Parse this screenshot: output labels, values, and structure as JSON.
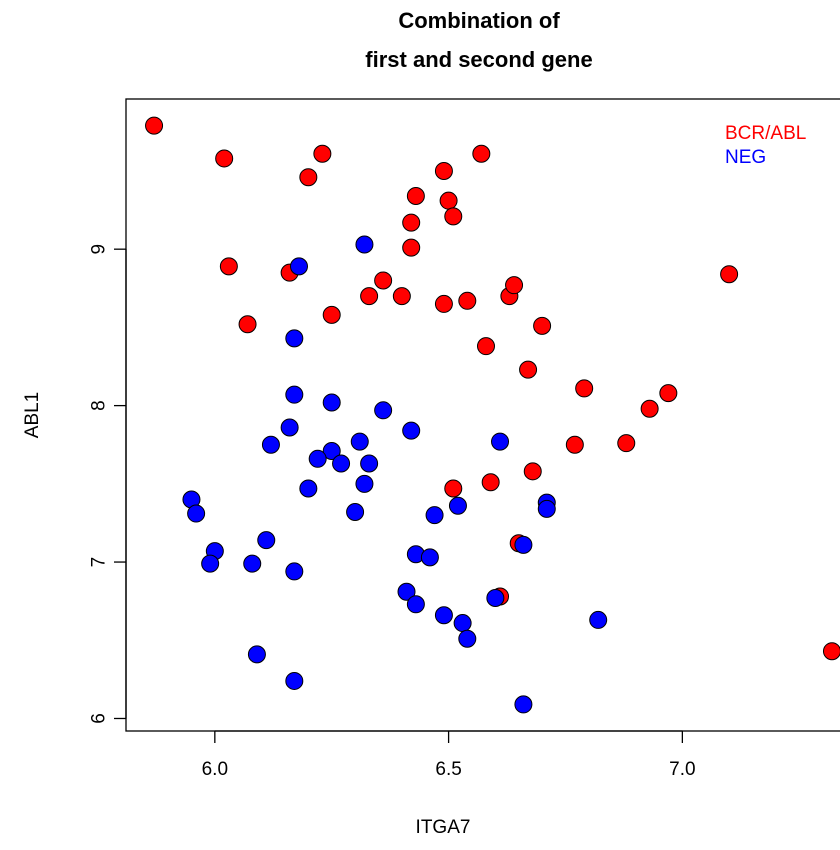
{
  "chart_data": {
    "type": "scatter",
    "title_line1": "Combination of",
    "title_line2": "first and second gene",
    "xlabel": "ITGA7",
    "ylabel": "ABL1",
    "xlim": [
      5.81,
      7.35
    ],
    "ylim": [
      5.92,
      9.96
    ],
    "xticks": [
      "6.0",
      "6.5",
      "7.0"
    ],
    "yticks": [
      "6",
      "7",
      "8",
      "9"
    ],
    "grid": false,
    "legend_position": "top-right",
    "colors": {
      "BCR/ABL": "#ff0000",
      "NEG": "#0000ff"
    },
    "series": [
      {
        "name": "BCR/ABL",
        "color": "#ff0000",
        "x": [
          5.87,
          6.02,
          6.23,
          6.2,
          6.57,
          6.49,
          6.5,
          6.51,
          6.43,
          6.42,
          6.42,
          6.03,
          6.16,
          6.36,
          6.33,
          6.4,
          6.49,
          6.54,
          6.63,
          6.64,
          6.25,
          6.07,
          6.7,
          6.58,
          7.1,
          6.67,
          6.79,
          6.97,
          6.93,
          6.77,
          6.88,
          6.68,
          6.59,
          6.51,
          6.65,
          6.61,
          7.32
        ],
        "y": [
          9.79,
          9.58,
          9.61,
          9.46,
          9.61,
          9.5,
          9.31,
          9.21,
          9.34,
          9.17,
          9.01,
          8.89,
          8.85,
          8.8,
          8.7,
          8.7,
          8.65,
          8.67,
          8.7,
          8.77,
          8.58,
          8.52,
          8.51,
          8.38,
          8.84,
          8.23,
          8.11,
          8.08,
          7.98,
          7.75,
          7.76,
          7.58,
          7.51,
          7.47,
          7.12,
          6.78,
          6.43
        ]
      },
      {
        "name": "NEG",
        "color": "#0000ff",
        "x": [
          6.32,
          6.18,
          6.17,
          6.17,
          6.25,
          6.36,
          6.16,
          6.42,
          6.12,
          6.31,
          6.25,
          6.22,
          6.27,
          6.33,
          6.61,
          6.2,
          6.32,
          5.95,
          5.96,
          6.3,
          6.52,
          6.47,
          6.71,
          6.71,
          6.66,
          6.11,
          6.0,
          6.43,
          6.46,
          5.99,
          6.08,
          6.17,
          6.41,
          6.43,
          6.6,
          6.49,
          6.53,
          6.82,
          6.54,
          6.09,
          6.17,
          6.66
        ],
        "y": [
          9.03,
          8.89,
          8.43,
          8.07,
          8.02,
          7.97,
          7.86,
          7.84,
          7.75,
          7.77,
          7.71,
          7.66,
          7.63,
          7.63,
          7.77,
          7.47,
          7.5,
          7.4,
          7.31,
          7.32,
          7.36,
          7.3,
          7.38,
          7.34,
          7.11,
          7.14,
          7.07,
          7.05,
          7.03,
          6.99,
          6.99,
          6.94,
          6.81,
          6.73,
          6.77,
          6.66,
          6.61,
          6.63,
          6.51,
          6.41,
          6.24,
          6.09
        ]
      }
    ]
  }
}
